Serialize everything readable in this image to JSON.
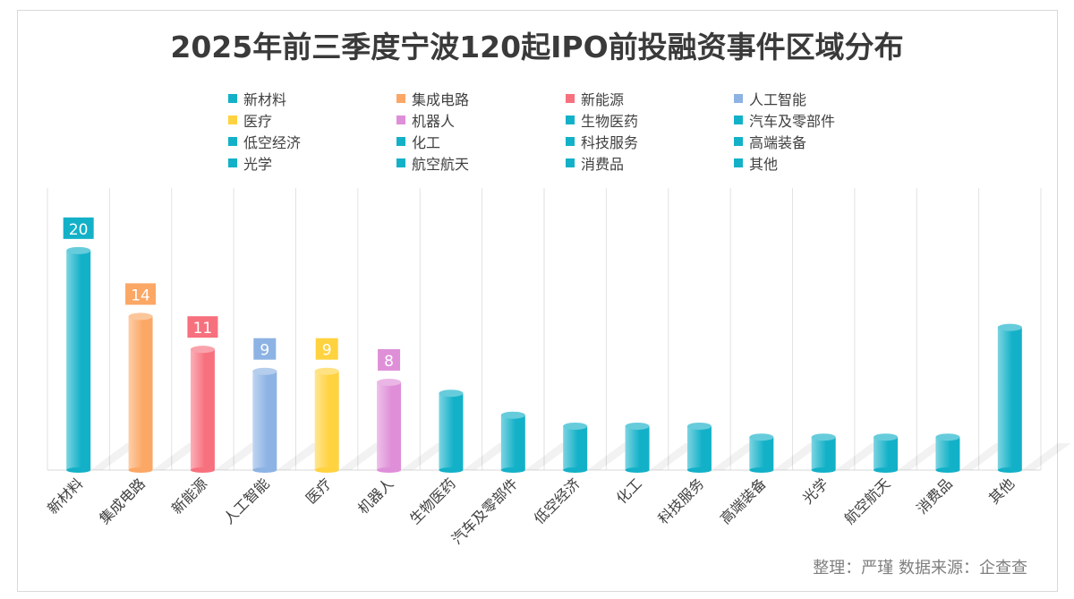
{
  "chart_data": {
    "type": "bar",
    "title": "2025年前三季度宁波120起IPO前投融资事件区域分布",
    "categories": [
      "新材料",
      "集成电路",
      "新能源",
      "人工智能",
      "医疗",
      "机器人",
      "生物医药",
      "汽车及零部件",
      "低空经济",
      "化工",
      "科技服务",
      "高端装备",
      "光学",
      "航空航天",
      "消费品",
      "其他"
    ],
    "values": [
      20,
      14,
      11,
      9,
      9,
      8,
      7,
      5,
      4,
      4,
      4,
      3,
      3,
      3,
      3,
      13
    ],
    "labeled": [
      true,
      true,
      true,
      true,
      true,
      true,
      false,
      false,
      false,
      false,
      false,
      false,
      false,
      false,
      false,
      false
    ],
    "colors": [
      "#13b1c8",
      "#fba765",
      "#f7707e",
      "#8db3e4",
      "#ffd23f",
      "#df8fd8",
      "#13b1c8",
      "#13b1c8",
      "#13b1c8",
      "#13b1c8",
      "#13b1c8",
      "#13b1c8",
      "#13b1c8",
      "#13b1c8",
      "#13b1c8",
      "#13b1c8"
    ],
    "ylim": [
      0,
      24
    ],
    "xlabel": "",
    "ylabel": "",
    "legend_position": "top",
    "grid": "vertical category separators"
  },
  "source": "整理：严瑾  数据来源：企查查"
}
